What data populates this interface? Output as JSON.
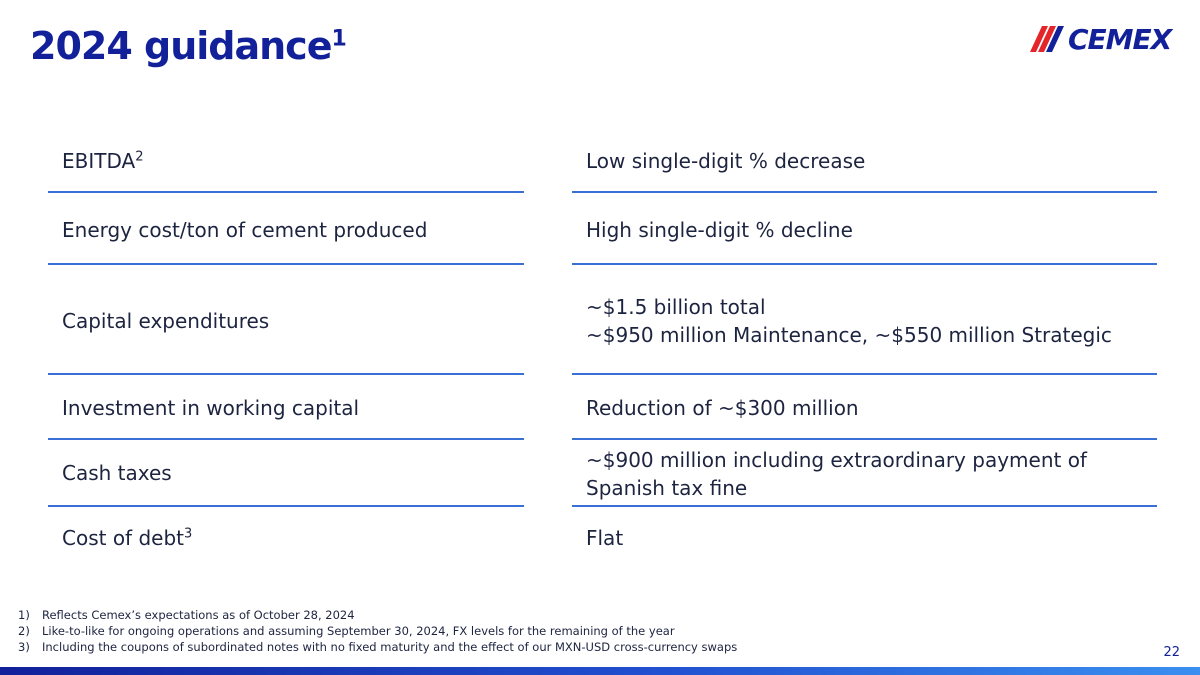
{
  "header": {
    "title": "2024 guidance",
    "title_footnote": "1",
    "logo_text": "CEMEX"
  },
  "rows": [
    {
      "label": "EBITDA",
      "label_footnote": "2",
      "value_lines": [
        "Low single-digit % decrease"
      ]
    },
    {
      "label": "Energy cost/ton of cement produced",
      "label_footnote": "",
      "value_lines": [
        "High single-digit % decline"
      ]
    },
    {
      "label": "Capital expenditures",
      "label_footnote": "",
      "value_lines": [
        "~$1.5 billion total",
        "~$950 million Maintenance, ~$550 million Strategic"
      ]
    },
    {
      "label": "Investment in working capital",
      "label_footnote": "",
      "value_lines": [
        "Reduction of ~$300 million"
      ]
    },
    {
      "label": "Cash taxes",
      "label_footnote": "",
      "value_lines": [
        "~$900 million including extraordinary payment of",
        "Spanish tax fine"
      ]
    },
    {
      "label": "Cost of debt",
      "label_footnote": "3",
      "value_lines": [
        "Flat"
      ]
    }
  ],
  "footnotes": [
    {
      "num": "1)",
      "text": "Reflects Cemex’s expectations as of October 28, 2024"
    },
    {
      "num": "2)",
      "text": "Like-to-like for ongoing operations and assuming September 30, 2024, FX levels for the remaining of the year"
    },
    {
      "num": "3)",
      "text": "Including the coupons of subordinated notes with no fixed maturity and the effect of our MXN-USD cross-currency swaps"
    }
  ],
  "page_number": "22",
  "colors": {
    "brand_blue": "#12209a",
    "rule_blue": "#3a6fd6",
    "logo_red": "#e4262b"
  }
}
